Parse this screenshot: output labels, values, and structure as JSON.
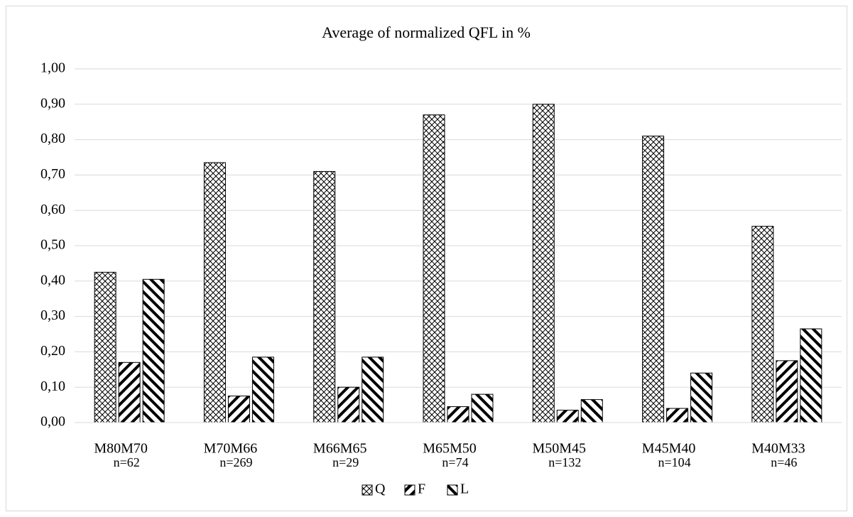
{
  "chart_data": {
    "type": "bar",
    "title": "Average of normalized QFL in %",
    "categories": [
      "M80M70",
      "M70M66",
      "M66M65",
      "M65M50",
      "M50M45",
      "M45M40",
      "M40M33"
    ],
    "n_labels": [
      "n=62",
      "n=269",
      "n=29",
      "n=74",
      "n=132",
      "n=104",
      "n=46"
    ],
    "series": [
      {
        "name": "Q",
        "color": "#000000",
        "pattern": "crosshatch",
        "values": [
          0.425,
          0.735,
          0.71,
          0.87,
          0.9,
          0.81,
          0.555
        ]
      },
      {
        "name": "F",
        "color": "#000000",
        "pattern": "diagonal-up",
        "values": [
          0.17,
          0.075,
          0.1,
          0.045,
          0.035,
          0.04,
          0.175
        ]
      },
      {
        "name": "L",
        "color": "#000000",
        "pattern": "diagonal-down",
        "values": [
          0.405,
          0.185,
          0.185,
          0.08,
          0.065,
          0.14,
          0.265
        ]
      }
    ],
    "ylim": [
      0,
      1
    ],
    "yticks": [
      {
        "value": 0,
        "label": "0,00"
      },
      {
        "value": 0.1,
        "label": "0,10"
      },
      {
        "value": 0.2,
        "label": "0,20"
      },
      {
        "value": 0.3,
        "label": "0,30"
      },
      {
        "value": 0.4,
        "label": "0,40"
      },
      {
        "value": 0.5,
        "label": "0,50"
      },
      {
        "value": 0.6,
        "label": "0,60"
      },
      {
        "value": 0.7,
        "label": "0,70"
      },
      {
        "value": 0.8,
        "label": "0,80"
      },
      {
        "value": 0.9,
        "label": "0,90"
      },
      {
        "value": 1,
        "label": "1,00"
      }
    ],
    "grid": true,
    "legend": "bottom"
  }
}
